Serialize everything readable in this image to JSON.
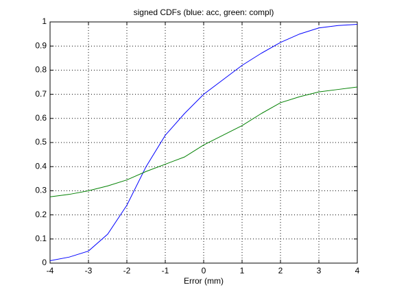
{
  "chart_data": {
    "type": "line",
    "title": "signed CDFs (blue: acc, green: compl)",
    "x_label": "Error (mm)",
    "x": [
      -4,
      -3.5,
      -3,
      -2.5,
      -2,
      -1.5,
      -1,
      -0.5,
      0,
      0.5,
      1,
      1.5,
      2,
      2.5,
      3,
      3.5,
      4
    ],
    "series": [
      {
        "name": "acc",
        "color": "#0000ff",
        "values": [
          0.01,
          0.025,
          0.05,
          0.12,
          0.24,
          0.4,
          0.53,
          0.62,
          0.7,
          0.76,
          0.82,
          0.87,
          0.915,
          0.95,
          0.975,
          0.985,
          0.99
        ]
      },
      {
        "name": "compl",
        "color": "#008000",
        "values": [
          0.275,
          0.285,
          0.3,
          0.32,
          0.345,
          0.38,
          0.41,
          0.44,
          0.49,
          0.53,
          0.57,
          0.62,
          0.665,
          0.69,
          0.71,
          0.72,
          0.73
        ]
      }
    ],
    "xlim": [
      -4,
      4
    ],
    "xticks": [
      -4,
      -3,
      -2,
      -1,
      0,
      1,
      2,
      3,
      4
    ],
    "ylim": [
      0,
      1
    ],
    "yticks": [
      0,
      0.1,
      0.2,
      0.3,
      0.4,
      0.5,
      0.6,
      0.7,
      0.8,
      0.9,
      1
    ],
    "grid": true
  }
}
